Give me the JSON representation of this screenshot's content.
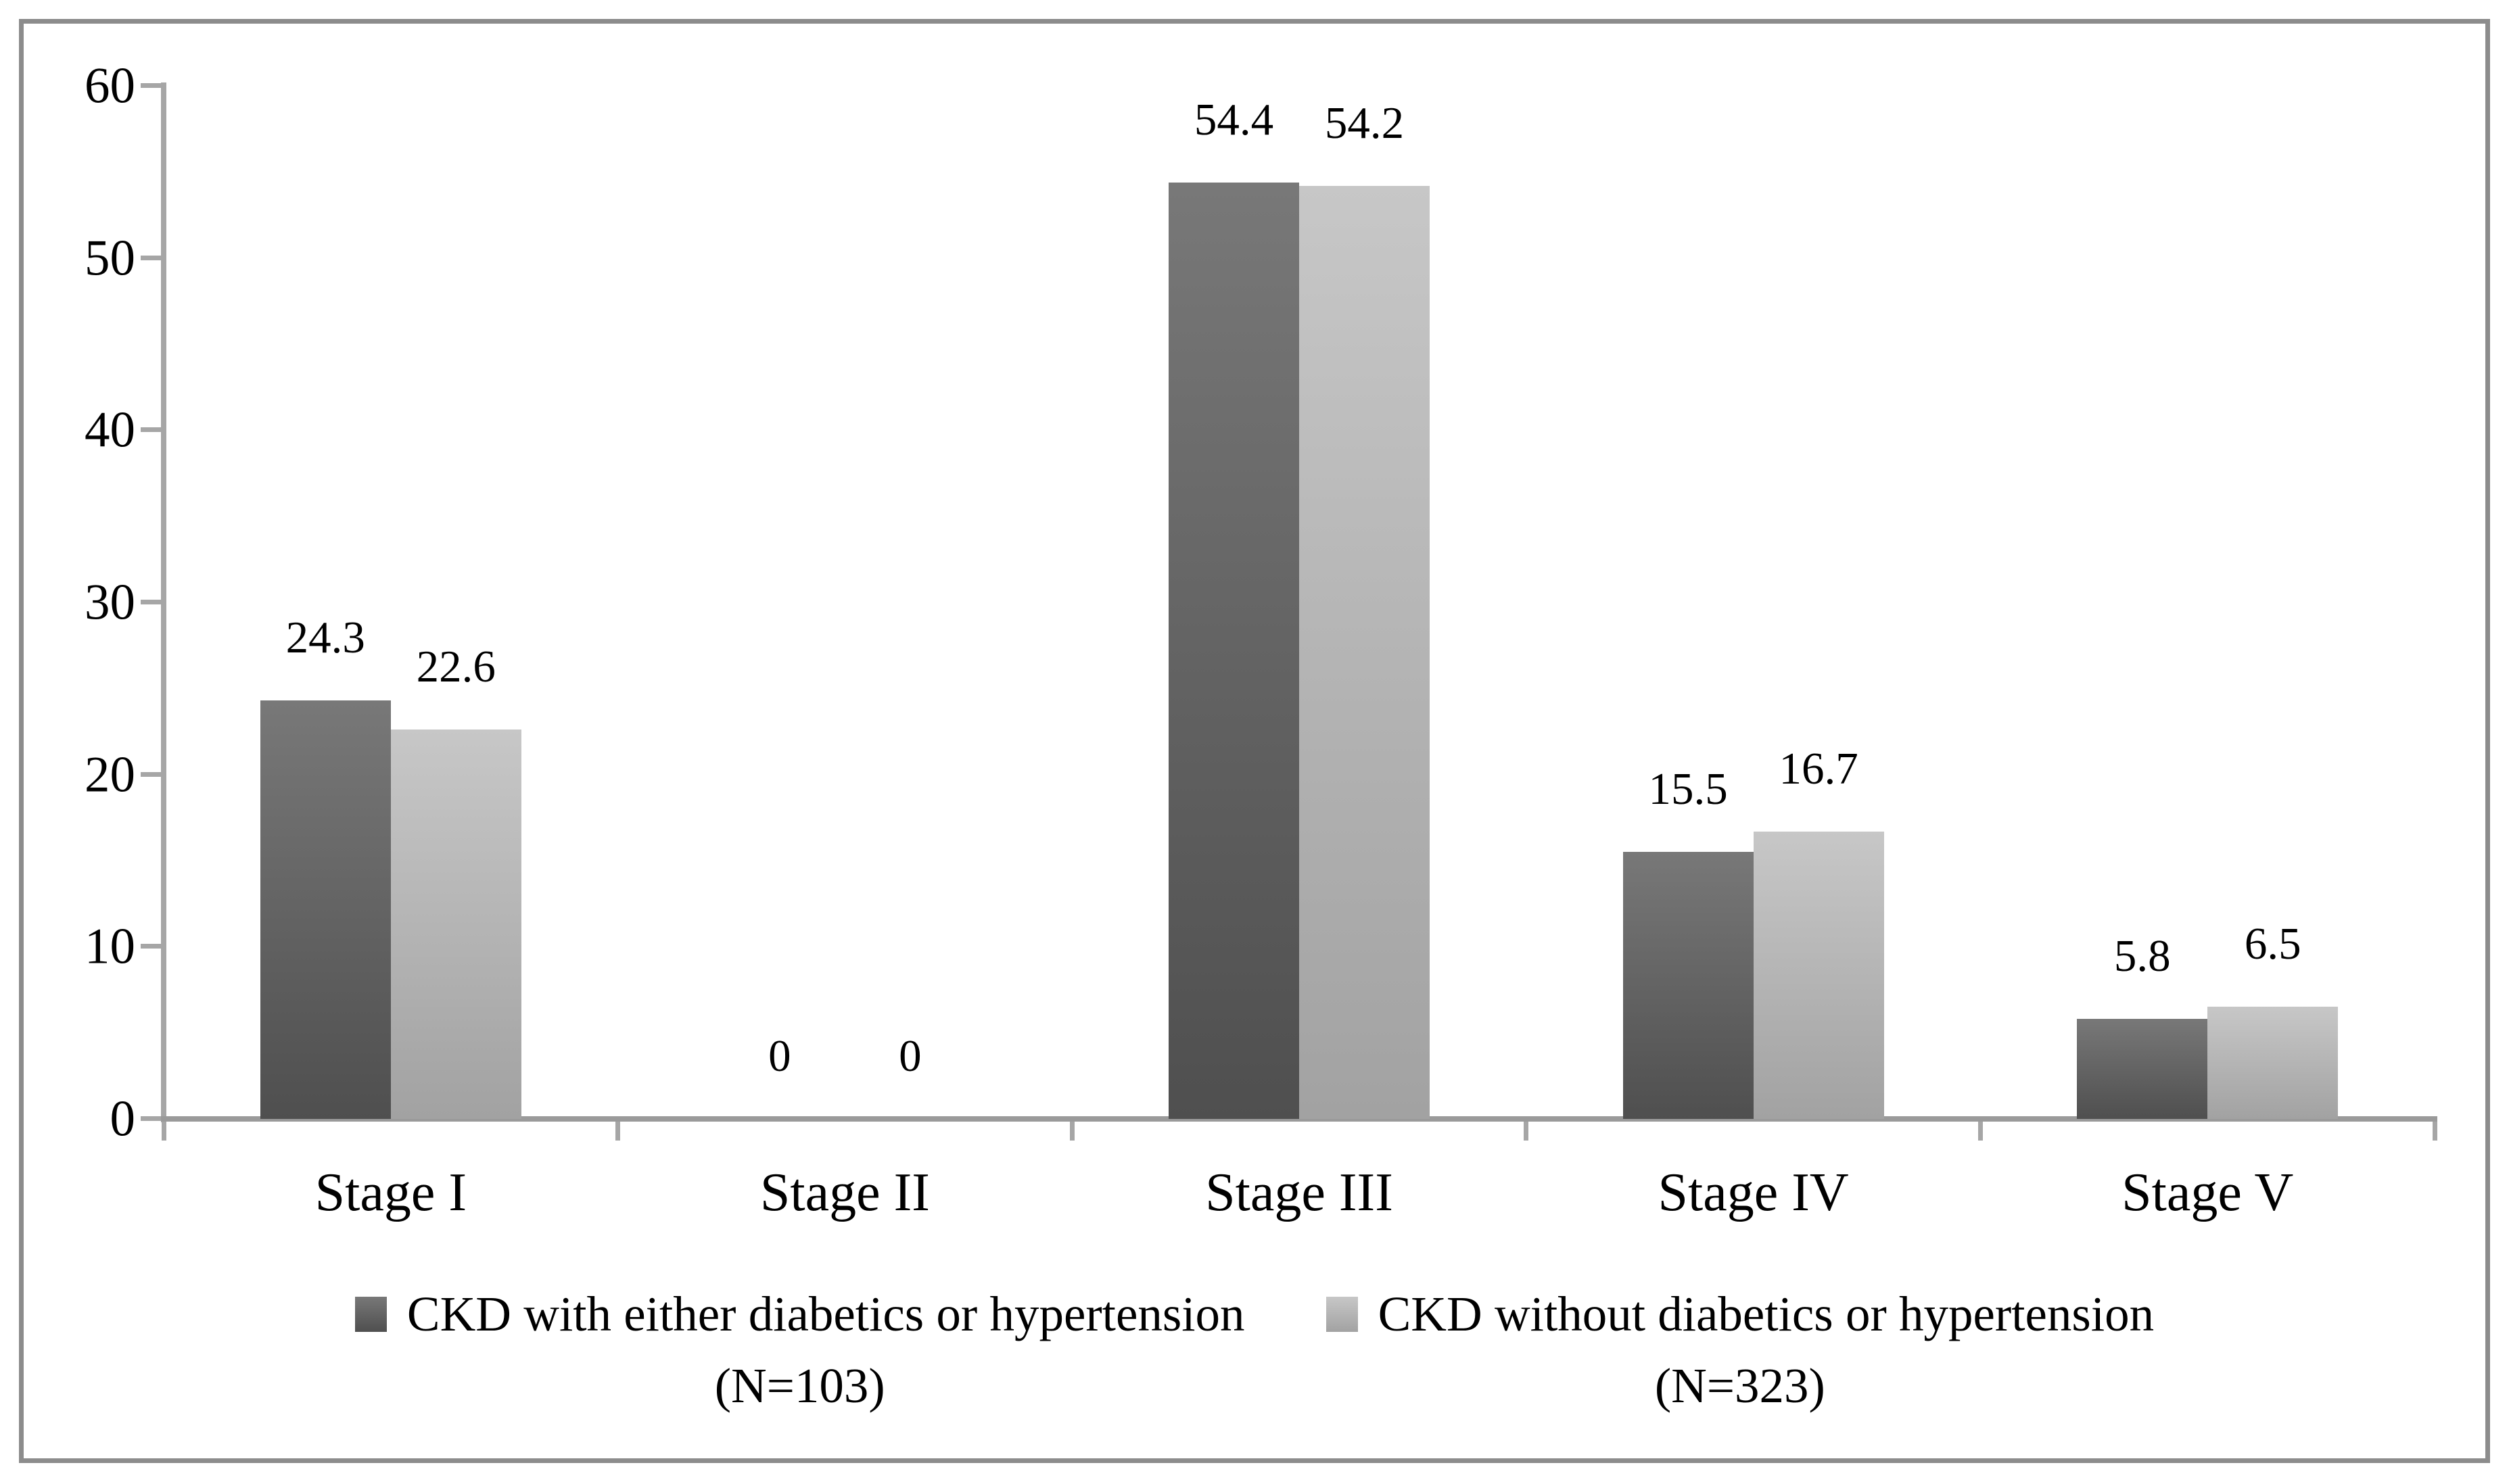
{
  "chart_data": {
    "type": "bar",
    "title": "",
    "xlabel": "",
    "ylabel": "",
    "categories": [
      "Stage I",
      "Stage II",
      "Stage III",
      "Stage IV",
      "Stage V"
    ],
    "series": [
      {
        "name": "CKD with either diabetics or hypertension (N=103)",
        "legend_label": "CKD with either diabetics or hypertension",
        "legend_n": "(N=103)",
        "values": [
          24.3,
          0,
          54.4,
          15.5,
          5.8
        ],
        "labels": [
          "24.3",
          "0",
          "54.4",
          "15.5",
          "5.8"
        ],
        "color_top": "#787878",
        "color_bottom": "#4f4f4f"
      },
      {
        "name": "CKD without diabetics or hypertension (N=323)",
        "legend_label": "CKD without diabetics or hypertension",
        "legend_n": "(N=323)",
        "values": [
          22.6,
          0,
          54.2,
          16.7,
          6.5
        ],
        "labels": [
          "22.6",
          "0",
          "54.2",
          "16.7",
          "6.5"
        ],
        "color_top": "#c7c7c7",
        "color_bottom": "#a2a2a2"
      }
    ],
    "yticks": [
      0,
      10,
      20,
      30,
      40,
      50,
      60
    ],
    "ylim": [
      0,
      60
    ],
    "grid": false,
    "legend_position": "bottom",
    "colors": {
      "frame_border": "#8c8c8c",
      "y_axis_line": "#a6a6a6",
      "x_axis_line": "#9a9a9a",
      "text": "#000000",
      "background": "#ffffff"
    }
  }
}
